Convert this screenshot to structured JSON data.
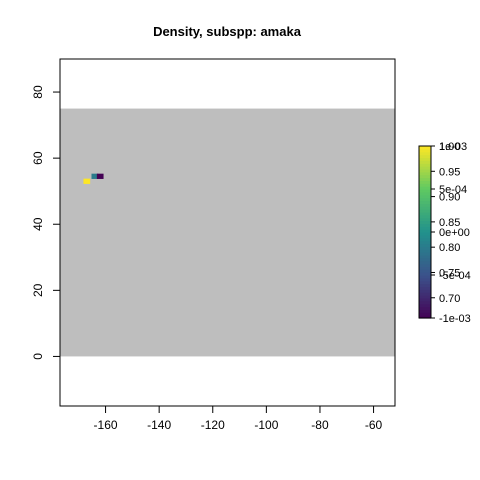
{
  "chart_data": {
    "type": "heatmap",
    "title": "Density, subspp: amaka",
    "xlabel": "",
    "ylabel": "",
    "xlim": [
      -177,
      -52
    ],
    "ylim": [
      -15,
      90
    ],
    "x_ticks": [
      -160,
      -140,
      -120,
      -100,
      -80,
      -60
    ],
    "y_ticks": [
      0,
      20,
      40,
      60,
      80
    ],
    "x_tick_labels": [
      "-160",
      "-140",
      "-120",
      "-100",
      "-80",
      "-60"
    ],
    "y_tick_labels": [
      "0",
      "20",
      "40",
      "60",
      "80"
    ],
    "background_region": {
      "x": [
        -177,
        -52
      ],
      "y": [
        0,
        75
      ],
      "color": "#bebebe"
    },
    "cells": [
      {
        "x": -167,
        "y": 53,
        "value": 1.0
      },
      {
        "x": -164,
        "y": 54.5,
        "value": 0.8
      },
      {
        "x": -162,
        "y": 54.5,
        "value": 0.66
      }
    ],
    "cell_width": 2.5,
    "cell_height": 1.6,
    "colorbar": {
      "range": [
        0.66,
        1.0
      ],
      "colors": [
        "#440154",
        "#3b528b",
        "#21918c",
        "#5ec962",
        "#fde725"
      ],
      "ticks": [
        {
          "value": 1.0,
          "label": "1.00"
        },
        {
          "value": 0.95,
          "label": "0.95"
        },
        {
          "value": 0.9,
          "label": "0.90"
        },
        {
          "value": 0.85,
          "label": "0.85"
        },
        {
          "value": 0.8,
          "label": "0.80"
        },
        {
          "value": 0.75,
          "label": "0.75"
        },
        {
          "value": 0.7,
          "label": "0.70"
        }
      ],
      "overlay_ticks": [
        {
          "value": 1.0,
          "label": "1e-03"
        },
        {
          "value": 0.915,
          "label": "5e-04"
        },
        {
          "value": 0.83,
          "label": "0e+00"
        },
        {
          "value": 0.745,
          "label": "-5e-04"
        },
        {
          "value": 0.66,
          "label": "-1e-03"
        }
      ]
    }
  }
}
